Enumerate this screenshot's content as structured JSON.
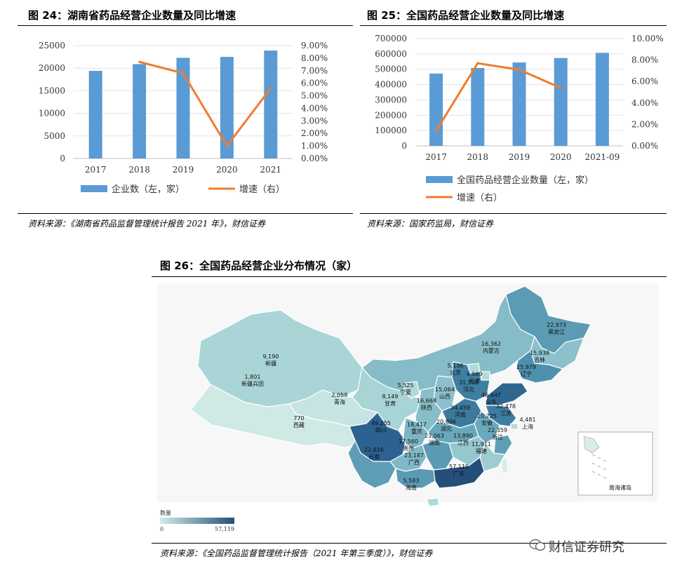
{
  "fig24": {
    "title": "图 24：湖南省药品经营企业数量及同比增速",
    "source": "资料来源：《湖南省药品监督管理统计报告 2021 年》，财信证券",
    "chart_data": {
      "type": "bar",
      "categories": [
        "2017",
        "2018",
        "2019",
        "2020",
        "2021"
      ],
      "series": [
        {
          "name": "企业数（左，家）",
          "type": "bar",
          "axis": "left",
          "color": "#5b9bd5",
          "values": [
            19400,
            20900,
            22300,
            22500,
            23900
          ]
        },
        {
          "name": "增速（右）",
          "type": "line",
          "axis": "right",
          "color": "#ed7d31",
          "values": [
            null,
            7.7,
            6.8,
            1.0,
            5.6
          ]
        }
      ],
      "y_left": {
        "min": 0,
        "max": 25000,
        "ticks": [
          "0",
          "5000",
          "10000",
          "15000",
          "20000",
          "25000"
        ]
      },
      "y_right": {
        "min": 0,
        "max": 9,
        "ticks": [
          "0.00%",
          "1.00%",
          "2.00%",
          "3.00%",
          "4.00%",
          "5.00%",
          "6.00%",
          "7.00%",
          "8.00%",
          "9.00%"
        ]
      },
      "grid": true,
      "legend": "bottom"
    }
  },
  "fig25": {
    "title": "图 25：全国药品经营企业数量及同比增速",
    "source": "资料来源：国家药监局，财信证券",
    "chart_data": {
      "type": "bar",
      "categories": [
        "2017",
        "2018",
        "2019",
        "2020",
        "2021-09"
      ],
      "series": [
        {
          "name": "全国药品经营企业数量（左，家）",
          "type": "bar",
          "axis": "left",
          "color": "#5b9bd5",
          "values": [
            472000,
            508000,
            544000,
            573000,
            607000
          ]
        },
        {
          "name": "增速（右）",
          "type": "line",
          "axis": "right",
          "color": "#ed7d31",
          "values": [
            1.4,
            7.7,
            7.1,
            5.4,
            null
          ]
        }
      ],
      "y_left": {
        "min": 0,
        "max": 700000,
        "ticks": [
          "0",
          "100000",
          "200000",
          "300000",
          "400000",
          "500000",
          "600000",
          "700000"
        ]
      },
      "y_right": {
        "min": 0,
        "max": 10,
        "ticks": [
          "0.00%",
          "2.00%",
          "4.00%",
          "6.00%",
          "8.00%",
          "10.00%"
        ]
      },
      "grid": true,
      "legend": "bottom"
    }
  },
  "fig26": {
    "title": "图 26：全国药品经营企业分布情况（家）",
    "source": "资料来源：《全国药品监督管理统计报告（2021 年第三季度）》，财信证券",
    "chart_data": {
      "type": "map",
      "regions": [
        {
          "name": "黑龙江",
          "value": "22,973",
          "color": "#5b9bb3"
        },
        {
          "name": "内蒙古",
          "value": "16,362",
          "color": "#86bcc8"
        },
        {
          "name": "吉林",
          "value": "15,938",
          "color": "#8cc1cc"
        },
        {
          "name": "辽宁",
          "value": "25,979",
          "color": "#4e90ad"
        },
        {
          "name": "新疆",
          "value": "9,190",
          "color": "#a9d5d7"
        },
        {
          "name": "新疆兵团",
          "value": "1,801",
          "color": "#c8e6e3"
        },
        {
          "name": "北京",
          "value": "5,136",
          "color": "#b0d9da"
        },
        {
          "name": "天津",
          "value": "4,969",
          "color": "#b2dadb"
        },
        {
          "name": "河北",
          "value": "31,508",
          "color": "#3f7fa1"
        },
        {
          "name": "山西",
          "value": "15,064",
          "color": "#8cc1cc"
        },
        {
          "name": "宁夏",
          "value": "5,525",
          "color": "#b0d9da"
        },
        {
          "name": "甘肃",
          "value": "8,149",
          "color": "#a8d4d6"
        },
        {
          "name": "青海",
          "value": "2,058",
          "color": "#c6e4e1"
        },
        {
          "name": "西藏",
          "value": "770",
          "color": "#cfe9e4"
        },
        {
          "name": "陕西",
          "value": "16,668",
          "color": "#88bec9"
        },
        {
          "name": "河南",
          "value": "34,459",
          "color": "#3b7a9d"
        },
        {
          "name": "山东",
          "value": "46,447",
          "color": "#2e6690"
        },
        {
          "name": "江苏",
          "value": "32,478",
          "color": "#3e7da0"
        },
        {
          "name": "上海",
          "value": "4,481",
          "color": "#b3dbdb"
        },
        {
          "name": "安徽",
          "value": "20,725",
          "color": "#6aa9bd"
        },
        {
          "name": "湖北",
          "value": "20,896",
          "color": "#69a8bc"
        },
        {
          "name": "浙江",
          "value": "22,359",
          "color": "#5f9fb6"
        },
        {
          "name": "四川",
          "value": "49,255",
          "color": "#2b6290"
        },
        {
          "name": "重庆",
          "value": "18,417",
          "color": "#7db5c5"
        },
        {
          "name": "湖南",
          "value": "23,063",
          "color": "#5a9ab3"
        },
        {
          "name": "江西",
          "value": "13,890",
          "color": "#95c7cf"
        },
        {
          "name": "福建",
          "value": "11,911",
          "color": "#9fccd2"
        },
        {
          "name": "贵州",
          "value": "17,560",
          "color": "#80b8c6"
        },
        {
          "name": "云南",
          "value": "22,616",
          "color": "#5e9db5"
        },
        {
          "name": "广西",
          "value": "23,187",
          "color": "#5a9ab3"
        },
        {
          "name": "广东",
          "value": "57,119",
          "color": "#244f7a"
        },
        {
          "name": "海南",
          "value": "5,583",
          "color": "#afd8d9"
        }
      ],
      "legend": {
        "title": "数量",
        "min": "0",
        "max": "57,119",
        "color_low": "#d3ece7",
        "color_high": "#244f7a"
      },
      "inset_label": "南海诸岛"
    }
  },
  "watermark": "财信证券研究"
}
